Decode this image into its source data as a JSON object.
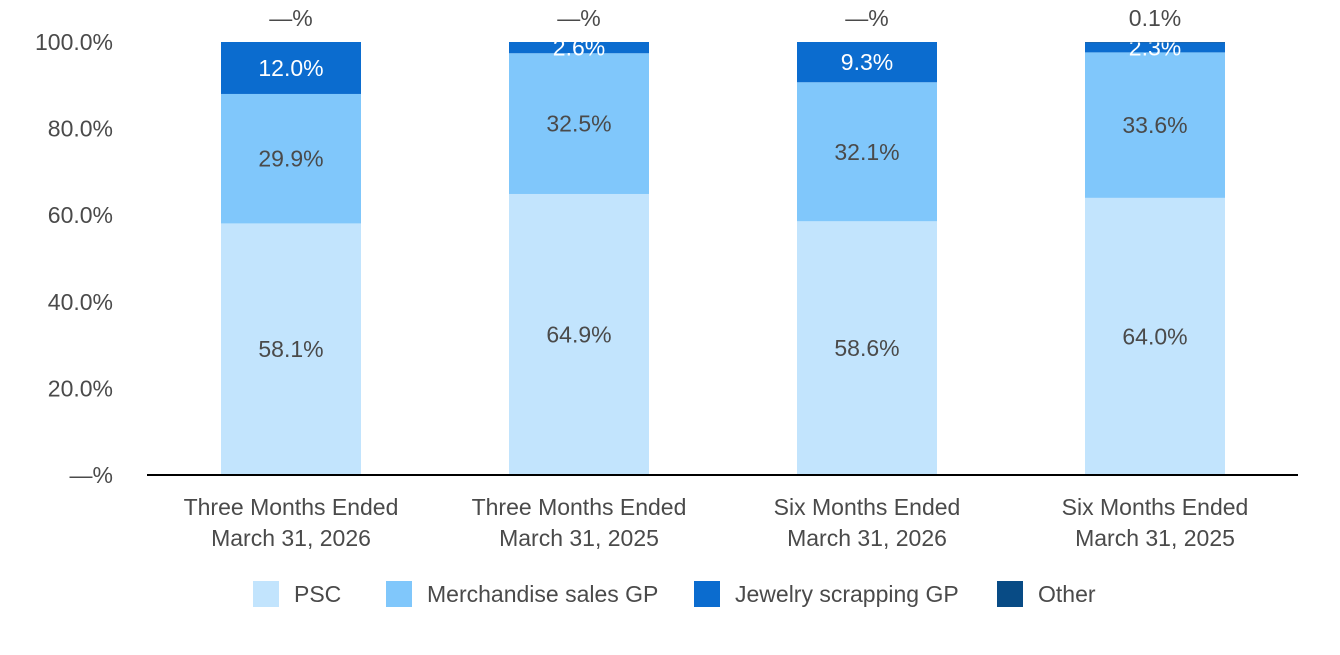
{
  "chart_data": {
    "type": "bar",
    "stacked": true,
    "title": "",
    "xlabel": "",
    "ylabel": "",
    "ylim": [
      0,
      100
    ],
    "y_ticks": [
      "—%",
      "20.0%",
      "40.0%",
      "60.0%",
      "80.0%",
      "100.0%"
    ],
    "categories": [
      [
        "Three Months Ended",
        "March 31, 2026"
      ],
      [
        "Three Months Ended",
        "March 31, 2025"
      ],
      [
        "Six Months Ended",
        "March 31, 2026"
      ],
      [
        "Six Months Ended",
        "March 31, 2025"
      ]
    ],
    "series": [
      {
        "name": "PSC",
        "color": "#c2e4fd",
        "values": [
          58.1,
          64.9,
          58.6,
          64.0
        ],
        "labels": [
          "58.1%",
          "64.9%",
          "58.6%",
          "64.0%"
        ],
        "label_color": "#4a4a4a"
      },
      {
        "name": "Merchandise sales GP",
        "color": "#80c7fb",
        "values": [
          29.9,
          32.5,
          32.1,
          33.6
        ],
        "labels": [
          "29.9%",
          "32.5%",
          "32.1%",
          "33.6%"
        ],
        "label_color": "#4a4a4a"
      },
      {
        "name": "Jewelry scrapping GP",
        "color": "#0b6ccf",
        "values": [
          12.0,
          2.6,
          9.3,
          2.3
        ],
        "labels": [
          "12.0%",
          "2.6%",
          "9.3%",
          "2.3%"
        ],
        "label_color": "#ffffff"
      },
      {
        "name": "Other",
        "color": "#084b85",
        "values": [
          0.0,
          0.0,
          0.0,
          0.1
        ],
        "labels": [
          "—%",
          "—%",
          "—%",
          "0.1%"
        ],
        "label_color": "#4a4a4a"
      }
    ],
    "grid": false,
    "legend_position": "bottom"
  }
}
